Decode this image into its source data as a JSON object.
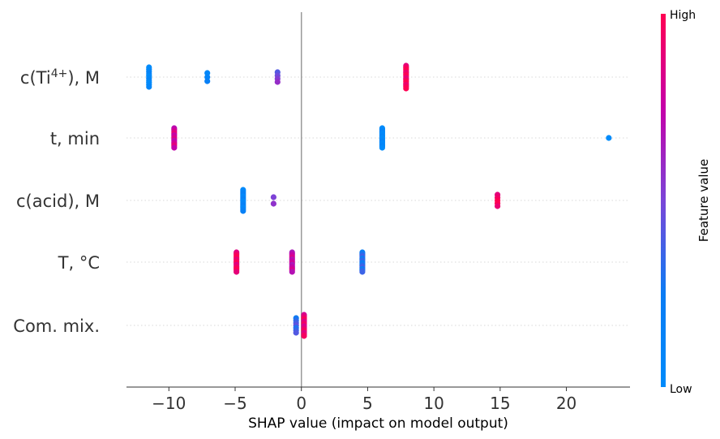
{
  "chart_data": {
    "type": "scatter",
    "subtype": "shap-beeswarm",
    "title": "",
    "xlabel": "SHAP value (impact on model output)",
    "xlim": [
      -13.2,
      24.8
    ],
    "xticks": [
      -10,
      -5,
      0,
      5,
      10,
      15,
      20
    ],
    "xtick_labels": [
      "−10",
      "−5",
      "0",
      "5",
      "10",
      "15",
      "20"
    ],
    "zero_line": true,
    "grid": false,
    "features": [
      {
        "label_pre": "c(Ti",
        "label_sup": "4+",
        "label_post": "), M",
        "points": [
          {
            "x": -11.5,
            "v": 0.05,
            "n": 10
          },
          {
            "x": -7.1,
            "v": 0.15,
            "n": 3
          },
          {
            "x": -1.8,
            "v": 0.5,
            "n": 4
          },
          {
            "x": 7.9,
            "v": 0.97,
            "n": 14
          }
        ]
      },
      {
        "label": "t, min",
        "points": [
          {
            "x": -9.6,
            "v": 0.8,
            "n": 12
          },
          {
            "x": 6.1,
            "v": 0.05,
            "n": 15
          },
          {
            "x": 23.2,
            "v": 0.05,
            "n": 1
          }
        ]
      },
      {
        "label": "c(acid), M",
        "points": [
          {
            "x": -4.4,
            "v": 0.1,
            "n": 14
          },
          {
            "x": -2.1,
            "v": 0.6,
            "n": 2
          },
          {
            "x": 14.8,
            "v": 0.97,
            "n": 5
          }
        ]
      },
      {
        "label": "T, °C",
        "points": [
          {
            "x": -4.9,
            "v": 0.95,
            "n": 12
          },
          {
            "x": -0.7,
            "v": 0.75,
            "n": 12
          },
          {
            "x": 4.6,
            "v": 0.3,
            "n": 14
          }
        ]
      },
      {
        "label": "Com. mix.",
        "points": [
          {
            "x": -0.4,
            "v": 0.35,
            "n": 7
          },
          {
            "x": 0.2,
            "v": 0.9,
            "n": 14
          }
        ]
      }
    ],
    "colorbar": {
      "title": "Feature value",
      "high_label": "High",
      "low_label": "Low",
      "low_color": "#008bfb",
      "high_color": "#ff0052"
    }
  }
}
